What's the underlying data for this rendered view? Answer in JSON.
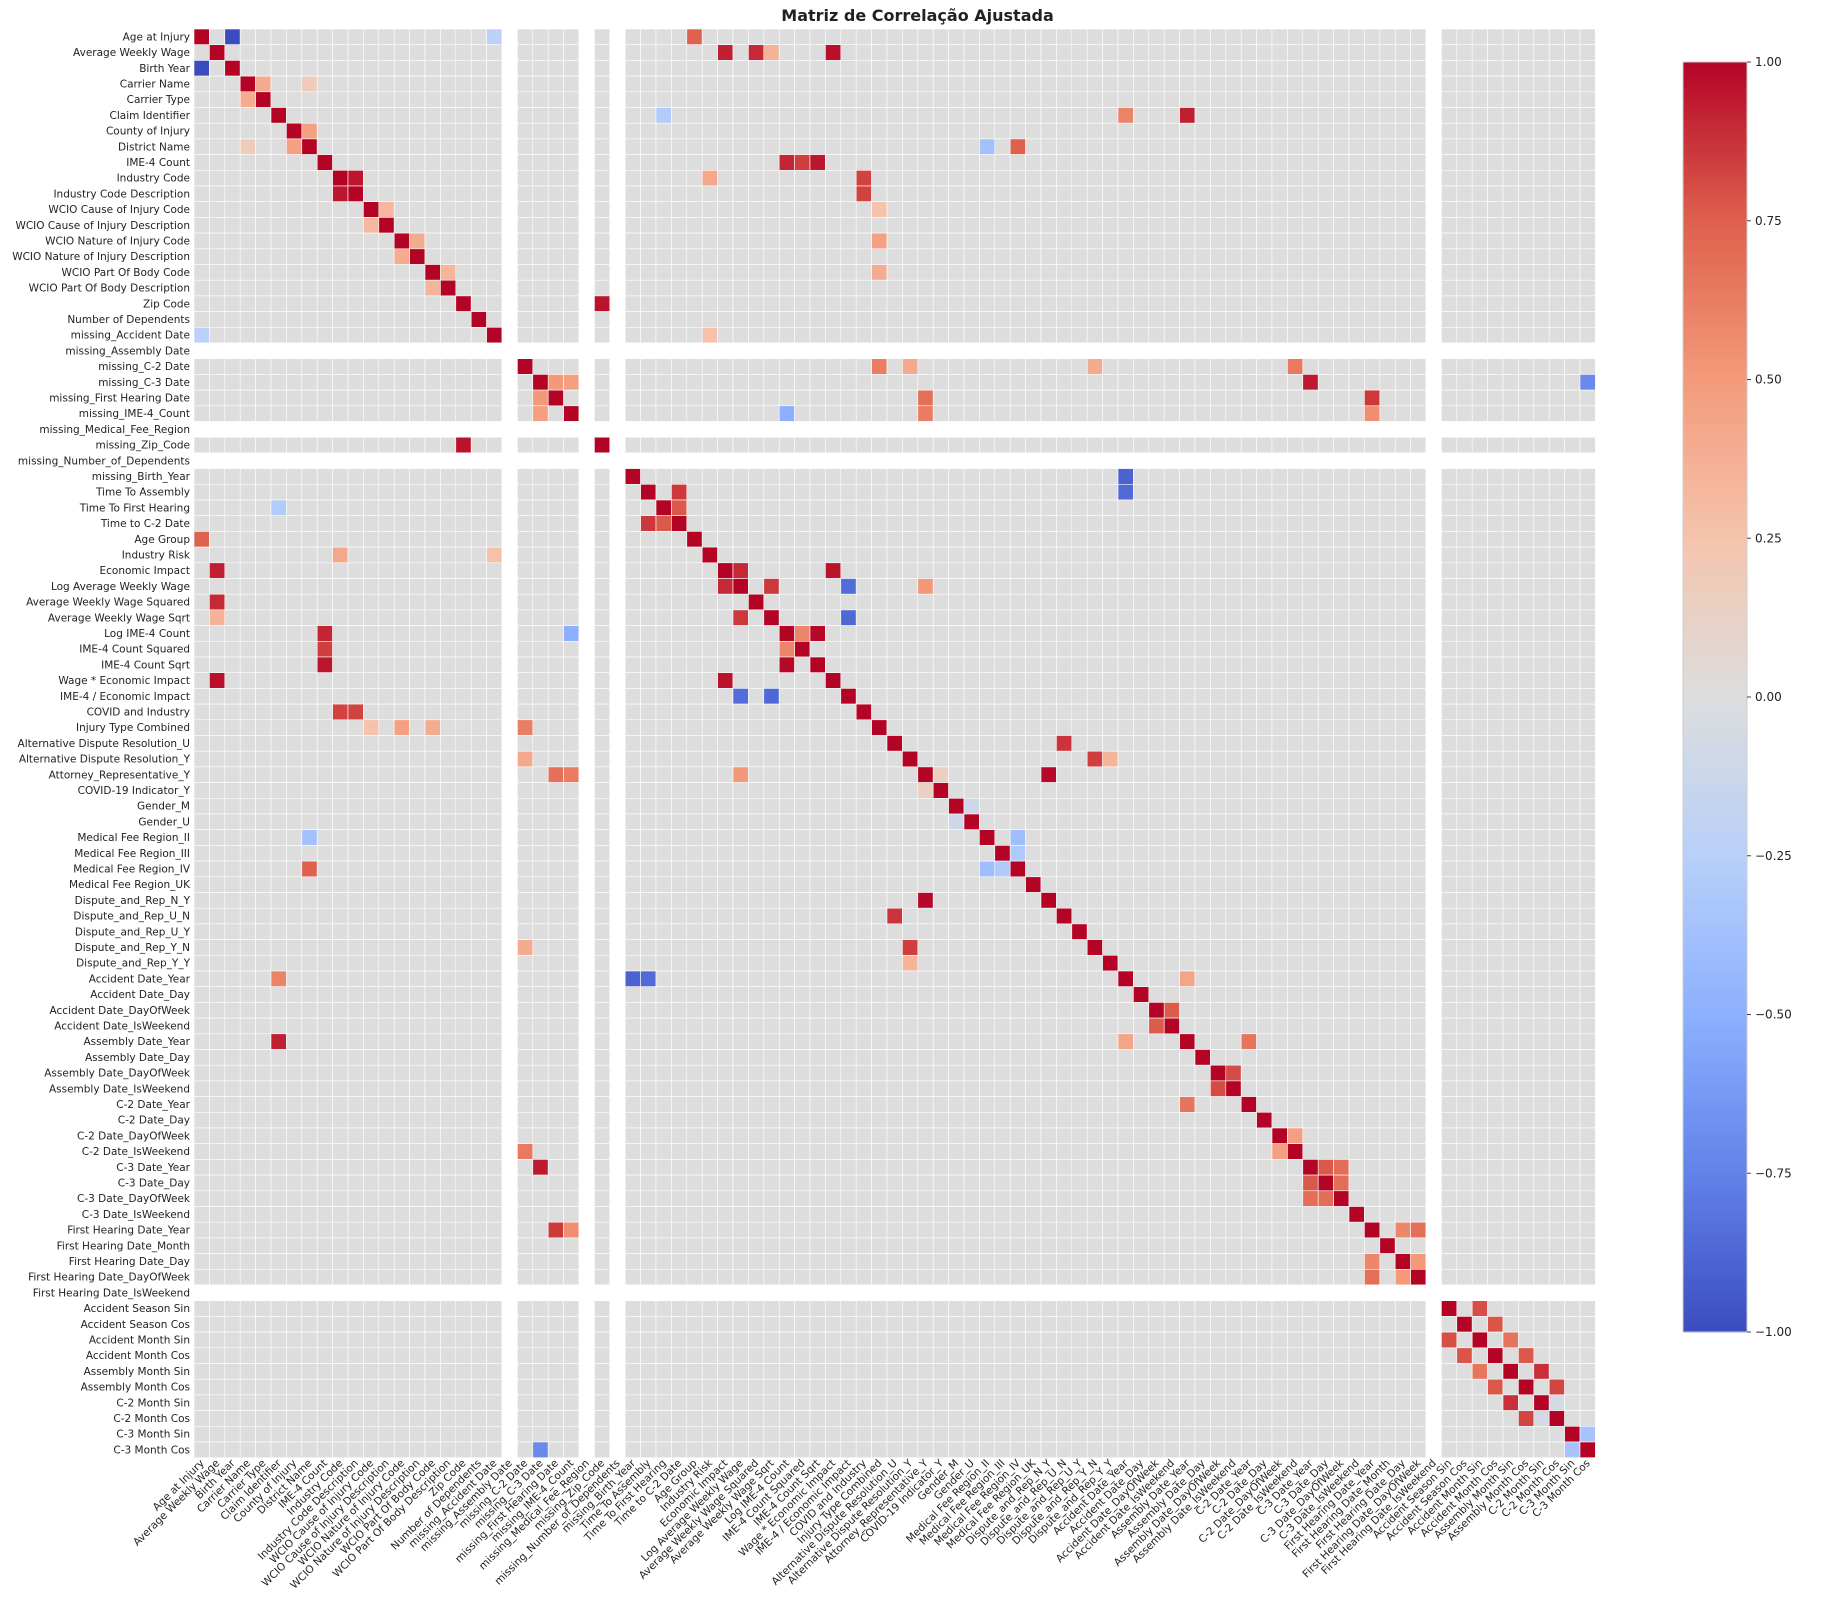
{
  "chart_data": {
    "type": "heatmap",
    "title": "Matriz de Correlação Ajustada",
    "xlabel": "",
    "ylabel": "",
    "colormap": "coolwarm",
    "vmin": -1.0,
    "vmax": 1.0,
    "colorbar_ticks": [
      -1.0,
      -0.75,
      -0.5,
      -0.25,
      0.0,
      0.25,
      0.5,
      0.75,
      1.0
    ],
    "colorbar_tick_labels": [
      "−1.00",
      "−0.75",
      "−0.50",
      "−0.25",
      "0.00",
      "0.25",
      "0.50",
      "0.75",
      "1.00"
    ],
    "labels": [
      "Age at Injury",
      "Average Weekly Wage",
      "Birth Year",
      "Carrier Name",
      "Carrier Type",
      "Claim Identifier",
      "County of Injury",
      "District Name",
      "IME-4 Count",
      "Industry Code",
      "Industry Code Description",
      "WCIO Cause of Injury Code",
      "WCIO Cause of Injury Description",
      "WCIO Nature of Injury Code",
      "WCIO Nature of Injury Description",
      "WCIO Part Of Body Code",
      "WCIO Part Of Body Description",
      "Zip Code",
      "Number of Dependents",
      "missing_Accident Date",
      "missing_Assembly Date",
      "missing_C-2 Date",
      "missing_C-3 Date",
      "missing_First Hearing Date",
      "missing_IME-4_Count",
      "missing_Medical_Fee_Region",
      "missing_Zip_Code",
      "missing_Number_of_Dependents",
      "missing_Birth_Year",
      "Time To Assembly",
      "Time To First Hearing",
      "Time to C-2 Date",
      "Age Group",
      "Industry Risk",
      "Economic Impact",
      "Log Average Weekly Wage",
      "Average Weekly Wage Squared",
      "Average Weekly Wage Sqrt",
      "Log IME-4 Count",
      "IME-4 Count Squared",
      "IME-4 Count Sqrt",
      "Wage * Economic Impact",
      "IME-4 / Economic Impact",
      "COVID and Industry",
      "Injury Type Combined",
      "Alternative Dispute Resolution_U",
      "Alternative Dispute Resolution_Y",
      "Attorney_Representative_Y",
      "COVID-19 Indicator_Y",
      "Gender_M",
      "Gender_U",
      "Medical Fee Region_II",
      "Medical Fee Region_III",
      "Medical Fee Region_IV",
      "Medical Fee Region_UK",
      "Dispute_and_Rep_N_Y",
      "Dispute_and_Rep_U_N",
      "Dispute_and_Rep_U_Y",
      "Dispute_and_Rep_Y_N",
      "Dispute_and_Rep_Y_Y",
      "Accident Date_Year",
      "Accident Date_Day",
      "Accident Date_DayOfWeek",
      "Accident Date_IsWeekend",
      "Assembly Date_Year",
      "Assembly Date_Day",
      "Assembly Date_DayOfWeek",
      "Assembly Date_IsWeekend",
      "C-2 Date_Year",
      "C-2 Date_Day",
      "C-2 Date_DayOfWeek",
      "C-2 Date_IsWeekend",
      "C-3 Date_Year",
      "C-3 Date_Day",
      "C-3 Date_DayOfWeek",
      "C-3 Date_IsWeekend",
      "First Hearing Date_Year",
      "First Hearing Date_Month",
      "First Hearing Date_Day",
      "First Hearing Date_DayOfWeek",
      "First Hearing Date_IsWeekend",
      "Accident Season Sin",
      "Accident Season Cos",
      "Accident Month Sin",
      "Accident Month Cos",
      "Assembly Month Sin",
      "Assembly Month Cos",
      "C-2 Month Sin",
      "C-2 Month Cos",
      "C-3 Month Sin",
      "C-3 Month Cos"
    ],
    "constant_variables": [
      "missing_Assembly Date",
      "missing_Medical_Fee_Region",
      "missing_Number_of_Dependents",
      "First Hearing Date_IsWeekend"
    ],
    "correlations": [
      [
        "Age at Injury",
        "Birth Year",
        -1.0
      ],
      [
        "Age at Injury",
        "Age Group",
        0.74
      ],
      [
        "Age at Injury",
        "missing_Accident Date",
        -0.23
      ],
      [
        "Average Weekly Wage",
        "Economic Impact",
        0.93
      ],
      [
        "Average Weekly Wage",
        "Average Weekly Wage Squared",
        0.9
      ],
      [
        "Average Weekly Wage",
        "Wage * Economic Impact",
        0.97
      ],
      [
        "Average Weekly Wage",
        "Average Weekly Wage Sqrt",
        0.36
      ],
      [
        "Carrier Name",
        "Carrier Type",
        0.4
      ],
      [
        "Carrier Name",
        "District Name",
        0.18
      ],
      [
        "Claim Identifier",
        "Assembly Date_Year",
        0.93
      ],
      [
        "Claim Identifier",
        "Accident Date_Year",
        0.6
      ],
      [
        "Claim Identifier",
        "Time To First Hearing",
        -0.29
      ],
      [
        "County of Injury",
        "District Name",
        0.46
      ],
      [
        "District Name",
        "Medical Fee Region_IV",
        0.75
      ],
      [
        "District Name",
        "Medical Fee Region_II",
        -0.37
      ],
      [
        "IME-4 Count",
        "Log IME-4 Count",
        0.91
      ],
      [
        "IME-4 Count",
        "IME-4 Count Squared",
        0.84
      ],
      [
        "IME-4 Count",
        "IME-4 Count Sqrt",
        0.95
      ],
      [
        "Industry Code",
        "Industry Code Description",
        0.95
      ],
      [
        "Industry Code",
        "COVID and Industry",
        0.83
      ],
      [
        "Industry Code",
        "Industry Risk",
        0.42
      ],
      [
        "Industry Code Description",
        "COVID and Industry",
        0.83
      ],
      [
        "WCIO Cause of Injury Code",
        "WCIO Cause of Injury Description",
        0.32
      ],
      [
        "WCIO Cause of Injury Code",
        "Injury Type Combined",
        0.26
      ],
      [
        "WCIO Nature of Injury Code",
        "WCIO Nature of Injury Description",
        0.4
      ],
      [
        "WCIO Nature of Injury Code",
        "Injury Type Combined",
        0.46
      ],
      [
        "WCIO Part Of Body Code",
        "WCIO Part Of Body Description",
        0.34
      ],
      [
        "WCIO Part Of Body Code",
        "Injury Type Combined",
        0.39
      ],
      [
        "Zip Code",
        "missing_Zip_Code",
        0.96
      ],
      [
        "missing_Accident Date",
        "Industry Risk",
        0.27
      ],
      [
        "missing_C-2 Date",
        "Injury Type Combined",
        0.62
      ],
      [
        "missing_C-2 Date",
        "Alternative Dispute Resolution_Y",
        0.41
      ],
      [
        "missing_C-2 Date",
        "Dispute_and_Rep_Y_N",
        0.39
      ],
      [
        "missing_C-2 Date",
        "C-2 Date_IsWeekend",
        0.64
      ],
      [
        "missing_C-3 Date",
        "missing_First Hearing Date",
        0.51
      ],
      [
        "missing_C-3 Date",
        "missing_IME-4_Count",
        0.47
      ],
      [
        "missing_C-3 Date",
        "C-3 Date_Year",
        0.94
      ],
      [
        "missing_C-3 Date",
        "C-3 Month Cos",
        -0.71
      ],
      [
        "missing_First Hearing Date",
        "Attorney_Representative_Y",
        0.68
      ],
      [
        "missing_First Hearing Date",
        "First Hearing Date_Year",
        0.86
      ],
      [
        "missing_IME-4_Count",
        "Attorney_Representative_Y",
        0.63
      ],
      [
        "missing_IME-4_Count",
        "Log IME-4 Count",
        -0.5
      ],
      [
        "missing_IME-4_Count",
        "First Hearing Date_Year",
        0.55
      ],
      [
        "missing_Birth_Year",
        "Accident Date_Year",
        -0.9
      ],
      [
        "Time To Assembly",
        "Time to C-2 Date",
        0.86
      ],
      [
        "Time To Assembly",
        "Accident Date_Year",
        -0.86
      ],
      [
        "Time To First Hearing",
        "Time to C-2 Date",
        0.77
      ],
      [
        "Time To First Hearing",
        "Claim Identifier",
        -0.29
      ],
      [
        "Economic Impact",
        "Log Average Weekly Wage",
        0.9
      ],
      [
        "Economic Impact",
        "Wage * Economic Impact",
        0.96
      ],
      [
        "Log Average Weekly Wage",
        "Average Weekly Wage Sqrt",
        0.86
      ],
      [
        "Log Average Weekly Wage",
        "IME-4 / Economic Impact",
        -0.85
      ],
      [
        "Log Average Weekly Wage",
        "Attorney_Representative_Y",
        0.51
      ],
      [
        "Average Weekly Wage Sqrt",
        "IME-4 / Economic Impact",
        -0.87
      ],
      [
        "Log IME-4 Count",
        "IME-4 Count Sqrt",
        0.99
      ],
      [
        "Log IME-4 Count",
        "IME-4 Count Squared",
        0.59
      ],
      [
        "Alternative Dispute Resolution_U",
        "Dispute_and_Rep_U_N",
        0.87
      ],
      [
        "Alternative Dispute Resolution_Y",
        "Dispute_and_Rep_Y_N",
        0.84
      ],
      [
        "Alternative Dispute Resolution_Y",
        "Dispute_and_Rep_Y_Y",
        0.34
      ],
      [
        "Attorney_Representative_Y",
        "Dispute_and_Rep_N_Y",
        0.99
      ],
      [
        "Attorney_Representative_Y",
        "COVID-19 Indicator_Y",
        0.14
      ],
      [
        "Gender_M",
        "Gender_U",
        -0.11
      ],
      [
        "Medical Fee Region_II",
        "Medical Fee Region_IV",
        -0.39
      ],
      [
        "Medical Fee Region_III",
        "Medical Fee Region_IV",
        -0.3
      ],
      [
        "Accident Date_Year",
        "Assembly Date_Year",
        0.44
      ],
      [
        "Accident Date_DayOfWeek",
        "Accident Date_IsWeekend",
        0.76
      ],
      [
        "Assembly Date_DayOfWeek",
        "Assembly Date_IsWeekend",
        0.81
      ],
      [
        "Assembly Date_Year",
        "C-2 Date_Year",
        0.66
      ],
      [
        "C-2 Date_DayOfWeek",
        "C-2 Date_IsWeekend",
        0.47
      ],
      [
        "C-3 Date_Year",
        "C-3 Date_Day",
        0.77
      ],
      [
        "C-3 Date_Year",
        "C-3 Date_DayOfWeek",
        0.69
      ],
      [
        "C-3 Date_Day",
        "C-3 Date_DayOfWeek",
        0.69
      ],
      [
        "First Hearing Date_Year",
        "First Hearing Date_Day",
        0.58
      ],
      [
        "First Hearing Date_Year",
        "First Hearing Date_DayOfWeek",
        0.68
      ],
      [
        "First Hearing Date_Day",
        "First Hearing Date_DayOfWeek",
        0.5
      ],
      [
        "Accident Season Sin",
        "Accident Month Sin",
        0.8
      ],
      [
        "Accident Season Sin",
        "Accident Season Cos",
        0.0
      ],
      [
        "Accident Season Cos",
        "Accident Month Cos",
        0.78
      ],
      [
        "Accident Month Sin",
        "Assembly Month Sin",
        0.66
      ],
      [
        "Accident Month Cos",
        "Assembly Month Cos",
        0.77
      ],
      [
        "Assembly Month Sin",
        "C-2 Month Sin",
        0.88
      ],
      [
        "Assembly Month Cos",
        "C-2 Month Cos",
        0.82
      ],
      [
        "C-3 Month Sin",
        "C-3 Month Cos",
        -0.35
      ],
      [
        "C-2 Month Sin",
        "C-2 Month Cos",
        -0.06
      ]
    ]
  }
}
